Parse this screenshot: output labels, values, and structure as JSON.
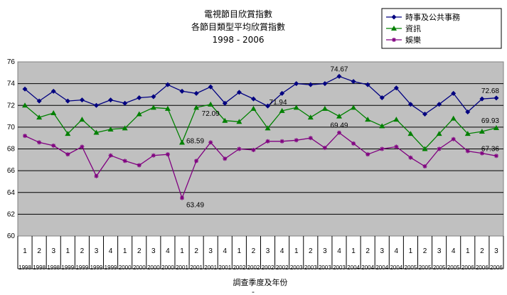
{
  "chart_data": {
    "type": "line",
    "title_lines": [
      "電視節目欣賞指數",
      "各節目類型平均欣賞指數",
      "1998 - 2006"
    ],
    "xlabel": "調查季度及年份",
    "ylabel": "",
    "ylim": [
      60,
      76
    ],
    "yticks": [
      "60",
      "62",
      "64",
      "66",
      "68",
      "70",
      "72",
      "74",
      "76"
    ],
    "grid": true,
    "legend_position": "top-right",
    "quarters": [
      "1",
      "2",
      "3",
      "1",
      "2",
      "3",
      "4",
      "1",
      "2",
      "3",
      "4",
      "1",
      "2",
      "3",
      "4",
      "1",
      "2",
      "3",
      "4",
      "1",
      "2",
      "3",
      "4",
      "1",
      "2",
      "3",
      "4",
      "1",
      "2",
      "3",
      "4",
      "1",
      "2",
      "3"
    ],
    "years": [
      "1998",
      "1998",
      "1998",
      "1999",
      "1999",
      "1999",
      "1999",
      "2000",
      "2000",
      "2000",
      "2000",
      "2001",
      "2001",
      "2001",
      "2001",
      "2002",
      "2002",
      "2002",
      "2002",
      "2003",
      "2003",
      "2003",
      "2003",
      "2004",
      "2004",
      "2004",
      "2004",
      "2005",
      "2005",
      "2005",
      "2005",
      "2006",
      "2006",
      "2006"
    ],
    "series": [
      {
        "name": "時事及公共事務",
        "color": "#000080",
        "marker": "diamond",
        "values": [
          73.5,
          72.4,
          73.3,
          72.4,
          72.5,
          72.0,
          72.5,
          72.2,
          72.7,
          72.8,
          73.9,
          73.3,
          73.1,
          73.7,
          72.2,
          73.2,
          72.6,
          71.94,
          73.1,
          74.0,
          73.9,
          74.0,
          74.67,
          74.2,
          73.9,
          72.7,
          73.6,
          72.1,
          71.2,
          72.1,
          73.1,
          71.4,
          72.6,
          72.68
        ],
        "labels": {
          "17": "71.94",
          "22": "74.67",
          "33": "72.68"
        }
      },
      {
        "name": "資訊",
        "color": "#008000",
        "marker": "triangle",
        "values": [
          72.0,
          70.9,
          71.3,
          69.4,
          70.7,
          69.5,
          69.8,
          69.9,
          71.2,
          71.8,
          71.7,
          68.59,
          71.8,
          72.09,
          70.6,
          70.5,
          71.7,
          69.9,
          71.5,
          71.8,
          70.9,
          71.7,
          71.0,
          71.8,
          70.7,
          70.1,
          70.7,
          69.4,
          68.0,
          69.4,
          70.8,
          69.4,
          69.6,
          69.93
        ],
        "labels": {
          "11": "68.59",
          "13": "72.09",
          "33": "69.93"
        }
      },
      {
        "name": "娛樂",
        "color": "#800080",
        "marker": "star",
        "values": [
          69.2,
          68.6,
          68.3,
          67.5,
          68.2,
          65.5,
          67.4,
          66.9,
          66.5,
          67.4,
          67.5,
          63.49,
          66.9,
          68.6,
          67.1,
          68.0,
          67.9,
          68.7,
          68.7,
          68.8,
          69.0,
          68.1,
          69.49,
          68.5,
          67.5,
          68.0,
          68.2,
          67.2,
          66.4,
          68.0,
          68.9,
          67.8,
          67.6,
          67.36
        ],
        "labels": {
          "11": "63.49",
          "22": "69.49",
          "33": "67.36"
        }
      }
    ]
  }
}
